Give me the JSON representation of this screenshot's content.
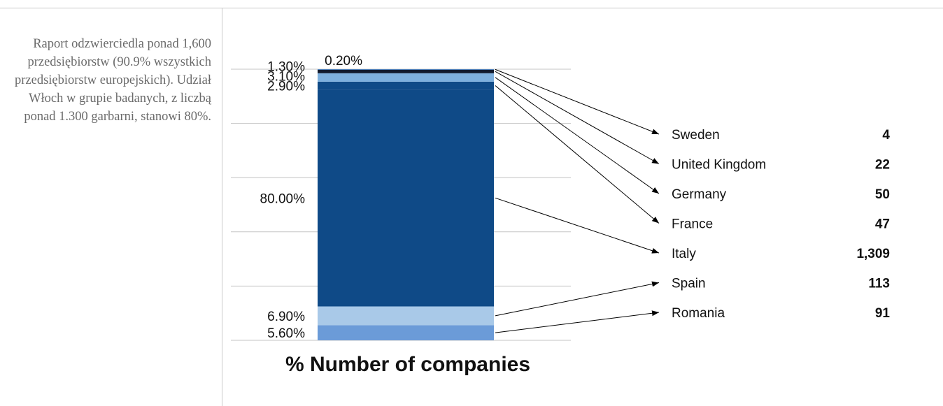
{
  "side_note": "Raport odzwierciedla ponad 1,600 przedsiębiorstw (90.9% wszystkich przedsiębiorstw europejskich). Udział Włoch w grupie badanych, z liczbą ponad 1.300 garbarni, stanowi 80%.",
  "chart_data": {
    "type": "bar",
    "stacked": true,
    "xlabel": "% Number of companies",
    "ylim": [
      0,
      100
    ],
    "grid": true,
    "series": [
      {
        "country": "Romania",
        "share": 5.6,
        "share_label": "5.60%",
        "count": 91,
        "count_label": "91",
        "color": "#6b9bd8"
      },
      {
        "country": "Spain",
        "share": 6.9,
        "share_label": "6.90%",
        "count": 113,
        "count_label": "113",
        "color": "#a9c9e8"
      },
      {
        "country": "Italy",
        "share": 80.0,
        "share_label": "80.00%",
        "count": 1309,
        "count_label": "1,309",
        "color": "#0f4a87"
      },
      {
        "country": "France",
        "share": 2.9,
        "share_label": "2.90%",
        "count": 47,
        "count_label": "47",
        "color": "#0f4a87"
      },
      {
        "country": "Germany",
        "share": 3.1,
        "share_label": "3.10%",
        "count": 50,
        "count_label": "50",
        "color": "#7eb0de"
      },
      {
        "country": "United Kingdom",
        "share": 1.3,
        "share_label": "1.30%",
        "count": 22,
        "count_label": "22",
        "color": "#111a2e"
      },
      {
        "country": "Sweden",
        "share": 0.2,
        "share_label": "0.20%",
        "count": 4,
        "count_label": "4",
        "color": "#3a78bf"
      }
    ],
    "legend_order": [
      "Sweden",
      "United Kingdom",
      "Germany",
      "France",
      "Italy",
      "Spain",
      "Romania"
    ]
  }
}
